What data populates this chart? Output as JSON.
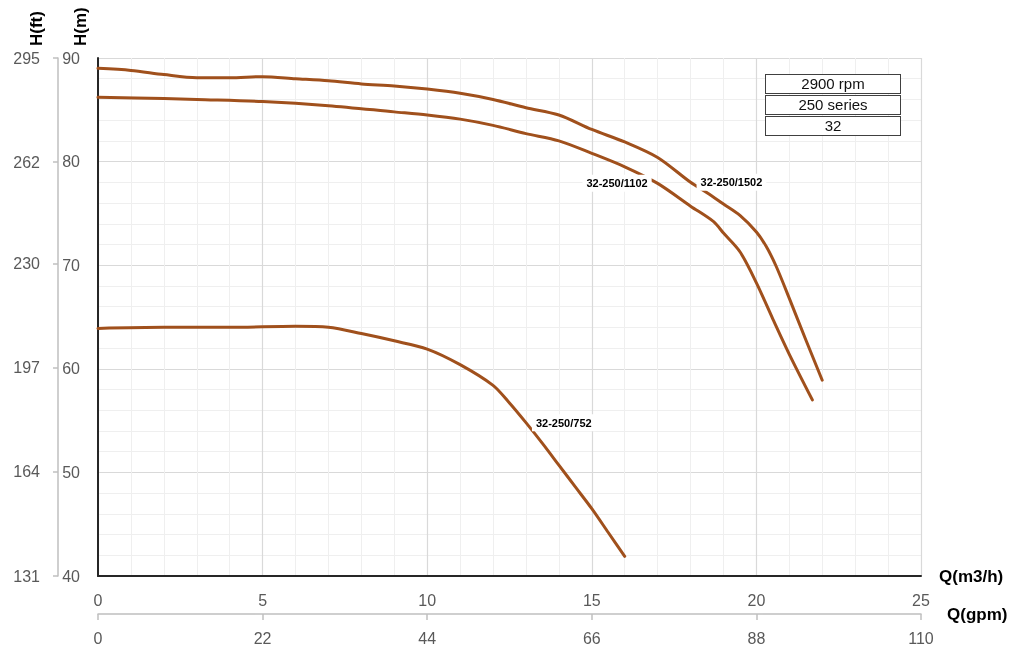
{
  "chart_data": {
    "type": "line",
    "xlabel": "Q(m3/h)",
    "x2label": "Q(gpm)",
    "ylabel": "H(m)",
    "y2label": "H(ft)",
    "annotations": [
      "2900 rpm",
      "250 series",
      "32"
    ],
    "xlim": [
      0,
      25
    ],
    "xticks": [
      0,
      5,
      10,
      15,
      20,
      25
    ],
    "x2lim": [
      0,
      110
    ],
    "x2ticks": [
      0,
      22,
      44,
      66,
      88,
      110
    ],
    "ylim": [
      40,
      90
    ],
    "yticks": [
      40,
      50,
      60,
      70,
      80,
      90
    ],
    "y2lim": [
      131,
      295
    ],
    "y2ticks": [
      131,
      164,
      197,
      230,
      262,
      295
    ],
    "grid": true,
    "marker": "none",
    "line_style": "solid",
    "series": [
      {
        "name": "32-250/1502",
        "color": "#a0501c",
        "x": [
          0,
          1,
          2,
          3,
          4,
          5,
          6,
          7,
          8,
          9,
          10,
          11,
          12,
          13,
          14,
          15,
          16,
          17,
          18,
          18.5,
          19,
          19.5,
          20,
          20.3,
          20.6,
          21,
          21.5,
          22
        ],
        "values": [
          89.0,
          88.8,
          88.4,
          88.1,
          88.1,
          88.2,
          88.0,
          87.8,
          87.5,
          87.3,
          87.0,
          86.6,
          86.0,
          85.2,
          84.5,
          83.1,
          81.9,
          80.4,
          78.0,
          77.0,
          75.9,
          74.8,
          73.2,
          71.8,
          69.9,
          66.8,
          62.8,
          58.9
        ]
      },
      {
        "name": "32-250/1102",
        "color": "#a0501c",
        "x": [
          0,
          2,
          3,
          5,
          7,
          9,
          10,
          11,
          12,
          13,
          14,
          15,
          16,
          17,
          18,
          18.7,
          19,
          19.5,
          20,
          20.5,
          21,
          21.7
        ],
        "values": [
          86.2,
          86.1,
          86.0,
          85.8,
          85.4,
          84.8,
          84.5,
          84.1,
          83.5,
          82.7,
          82.0,
          80.8,
          79.5,
          77.9,
          75.7,
          74.2,
          73.1,
          71.3,
          68.3,
          64.8,
          61.4,
          57.0
        ]
      },
      {
        "name": "32-250/752",
        "color": "#a0501c",
        "x": [
          0,
          2,
          4,
          6,
          7,
          8,
          9,
          10,
          11,
          12,
          12.5,
          13,
          13.5,
          14,
          14.5,
          15,
          15.5,
          16
        ],
        "values": [
          63.9,
          64.0,
          64.0,
          64.1,
          64.0,
          63.4,
          62.7,
          61.9,
          60.4,
          58.4,
          56.7,
          54.8,
          52.8,
          50.7,
          48.6,
          46.5,
          44.2,
          41.9
        ]
      }
    ]
  }
}
